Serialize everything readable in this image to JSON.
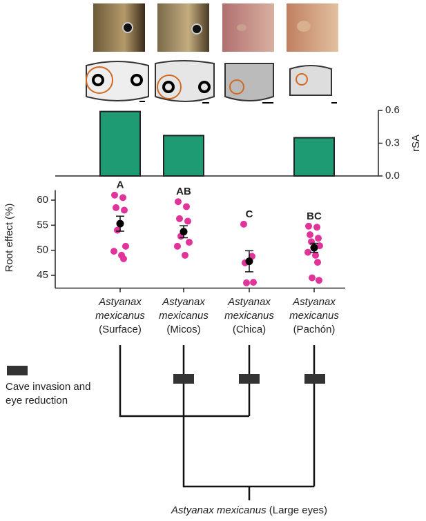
{
  "chart_data": [
    {
      "type": "bar",
      "y_label": "rSA",
      "color": "#1e9b73",
      "categories": [
        null,
        null,
        null,
        null
      ],
      "values": [
        0.59,
        0.37,
        null,
        0.35
      ],
      "ylim": [
        0,
        0.6
      ],
      "yticks": [
        {
          "value": 0,
          "label": "0.0"
        },
        0.3,
        0.6
      ],
      "axis_side": "right"
    },
    {
      "type": "strip",
      "y_label": "Root effect (%)",
      "genus": "Astyanax",
      "species": "mexicanus",
      "categories": [
        "(Surface)",
        "(Micos)",
        "(Chica)",
        "(Pachón)"
      ],
      "values": [
        [
          61,
          60.5,
          58.5,
          58,
          54,
          50.8,
          49.8,
          49,
          48.3
        ],
        [
          59.7,
          58.7,
          56.3,
          55.8,
          52.8,
          51.6,
          50.8,
          49
        ],
        [
          55.2,
          48.8,
          47.5,
          43.6,
          43.5
        ],
        [
          54.8,
          54.6,
          53.1,
          52.4,
          51.7,
          50.9,
          49.6,
          49,
          47.6,
          44.5,
          44
        ]
      ],
      "means": [
        55.3,
        53.7,
        47.8,
        50.5
      ],
      "errors": [
        1.5,
        1.2,
        2.1,
        0.9
      ],
      "group_labels": [
        "A",
        "AB",
        "C",
        "BC"
      ],
      "color": "#e0349a",
      "mean_color": "#000000",
      "ylim": [
        43,
        62
      ],
      "yticks": [
        45,
        50,
        55,
        60
      ]
    }
  ],
  "tree": {
    "legend_lines": [
      "Cave invasion and",
      "eye reduction"
    ],
    "root_species": "Astyanax mexicanus",
    "root_note": "(Large eyes)"
  }
}
